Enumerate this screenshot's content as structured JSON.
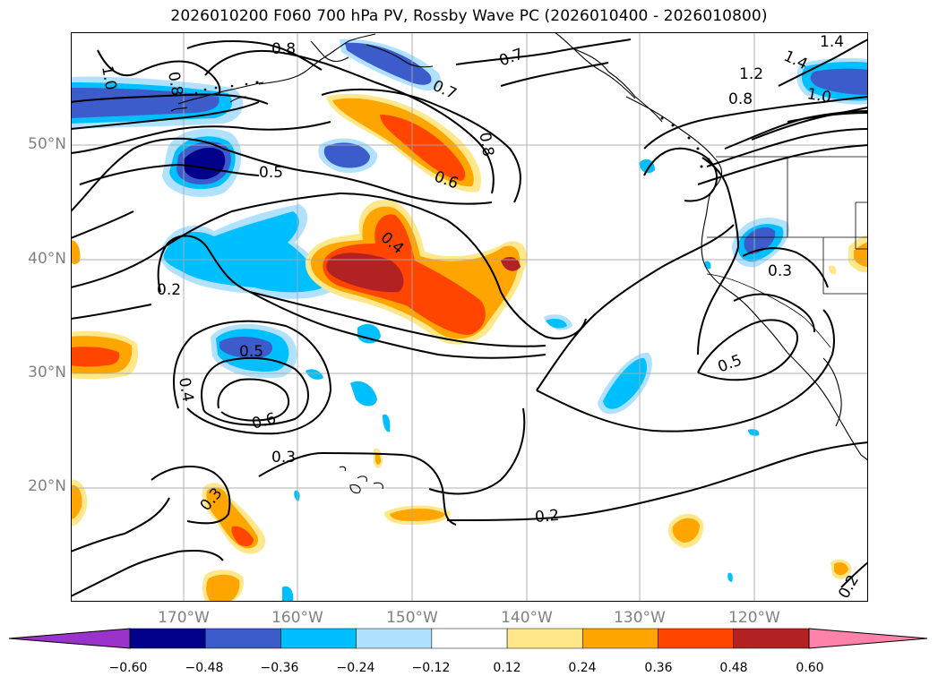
{
  "title": "2026010200 F060 700 hPa PV, Rossby Wave PC (2026010400 - 2026010800)",
  "lat_labels": [
    "50°N",
    "40°N",
    "30°N",
    "20°N"
  ],
  "lon_labels": [
    "170°W",
    "160°W",
    "150°W",
    "140°W",
    "130°W",
    "120°W"
  ],
  "contour_labels": [
    "1.0",
    "0.8",
    "0.8",
    "0.7",
    "0.7",
    "0.8",
    "0.6",
    "0.5",
    "0.4",
    "0.2",
    "0.5",
    "0.6",
    "0.4",
    "0.3",
    "0.3",
    "0.2",
    "1.4",
    "1.4",
    "1.2",
    "1.0",
    "0.8",
    "0.3",
    "0.5",
    "0.2"
  ],
  "colorbar": {
    "ticks": [
      "−0.60",
      "−0.48",
      "−0.36",
      "−0.24",
      "−0.12",
      "0.12",
      "0.24",
      "0.36",
      "0.48",
      "0.60"
    ],
    "colors": [
      "#9a33cc",
      "#00008b",
      "#3c5ccc",
      "#00bfff",
      "#b0e2ff",
      "#ffffff",
      "#ffe78a",
      "#ffa500",
      "#ff4500",
      "#b22222",
      "#ff82ab"
    ]
  }
}
